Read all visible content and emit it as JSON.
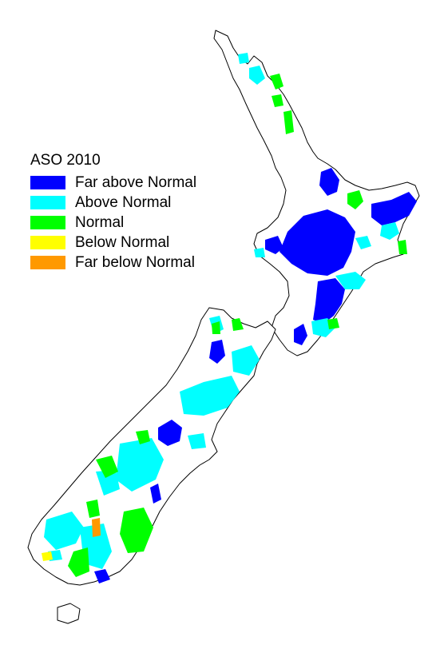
{
  "legend": {
    "title": "ASO 2010",
    "items": [
      {
        "label": "Far above Normal",
        "color": "#0000ff"
      },
      {
        "label": "Above Normal",
        "color": "#00ffff"
      },
      {
        "label": "Normal",
        "color": "#00ff00"
      },
      {
        "label": "Below Normal",
        "color": "#ffff00"
      },
      {
        "label": "Far below Normal",
        "color": "#ff9900"
      }
    ]
  },
  "colors": {
    "background": "#ffffff",
    "coastline": "#000000"
  }
}
